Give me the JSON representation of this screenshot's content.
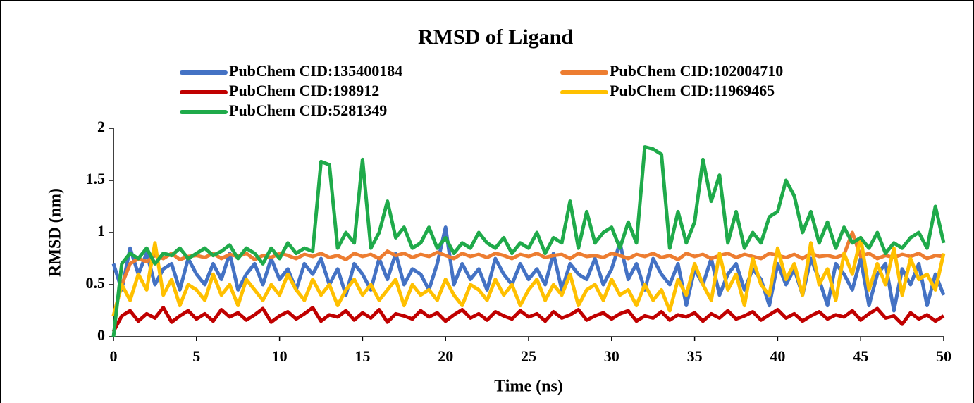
{
  "chart_data": {
    "type": "line",
    "title": "RMSD of Ligand",
    "x_label": "Time (ns)",
    "y_label": "RMSD (nm)",
    "xlim": [
      0,
      50
    ],
    "xticks": [
      0,
      5,
      10,
      15,
      20,
      25,
      30,
      35,
      40,
      45,
      50
    ],
    "ylim": [
      0,
      2
    ],
    "yticks": [
      0,
      0.5,
      1,
      1.5,
      2
    ],
    "x": [
      0,
      0.5,
      1,
      1.5,
      2,
      2.5,
      3,
      3.5,
      4,
      4.5,
      5,
      5.5,
      6,
      6.5,
      7,
      7.5,
      8,
      8.5,
      9,
      9.5,
      10,
      10.5,
      11,
      11.5,
      12,
      12.5,
      13,
      13.5,
      14,
      14.5,
      15,
      15.5,
      16,
      16.5,
      17,
      17.5,
      18,
      18.5,
      19,
      19.5,
      20,
      20.5,
      21,
      21.5,
      22,
      22.5,
      23,
      23.5,
      24,
      24.5,
      25,
      25.5,
      26,
      26.5,
      27,
      27.5,
      28,
      28.5,
      29,
      29.5,
      30,
      30.5,
      31,
      31.5,
      32,
      32.5,
      33,
      33.5,
      34,
      34.5,
      35,
      35.5,
      36,
      36.5,
      37,
      37.5,
      38,
      38.5,
      39,
      39.5,
      40,
      40.5,
      41,
      41.5,
      42,
      42.5,
      43,
      43.5,
      44,
      44.5,
      45,
      45.5,
      46,
      46.5,
      47,
      47.5,
      48,
      48.5,
      49,
      49.5,
      50
    ],
    "series": [
      {
        "name": "PubChem CID:135400184",
        "color": "#4472c4",
        "values": [
          0.7,
          0.45,
          0.85,
          0.6,
          0.8,
          0.5,
          0.65,
          0.7,
          0.45,
          0.75,
          0.6,
          0.5,
          0.7,
          0.55,
          0.8,
          0.45,
          0.6,
          0.7,
          0.5,
          0.75,
          0.55,
          0.65,
          0.45,
          0.7,
          0.6,
          0.75,
          0.5,
          0.65,
          0.4,
          0.7,
          0.6,
          0.45,
          0.75,
          0.55,
          0.8,
          0.5,
          0.65,
          0.6,
          0.45,
          0.7,
          1.05,
          0.5,
          0.7,
          0.55,
          0.65,
          0.45,
          0.75,
          0.6,
          0.5,
          0.7,
          0.55,
          0.65,
          0.5,
          0.8,
          0.45,
          0.7,
          0.6,
          0.55,
          0.75,
          0.5,
          0.65,
          0.9,
          0.55,
          0.7,
          0.45,
          0.75,
          0.6,
          0.5,
          0.7,
          0.3,
          0.65,
          0.5,
          0.75,
          0.4,
          0.6,
          0.7,
          0.45,
          0.65,
          0.55,
          0.3,
          0.7,
          0.5,
          0.65,
          0.4,
          0.75,
          0.55,
          0.3,
          0.7,
          0.6,
          0.45,
          0.75,
          0.3,
          0.6,
          0.7,
          0.25,
          0.65,
          0.5,
          0.7,
          0.3,
          0.6,
          0.4
        ]
      },
      {
        "name": "PubChem CID:102004710",
        "color": "#ed7d31",
        "values": [
          0.2,
          0.5,
          0.7,
          0.75,
          0.72,
          0.78,
          0.75,
          0.8,
          0.74,
          0.77,
          0.78,
          0.76,
          0.8,
          0.75,
          0.79,
          0.77,
          0.8,
          0.74,
          0.78,
          0.76,
          0.8,
          0.78,
          0.75,
          0.79,
          0.77,
          0.8,
          0.76,
          0.78,
          0.74,
          0.8,
          0.77,
          0.79,
          0.75,
          0.82,
          0.78,
          0.8,
          0.76,
          0.79,
          0.77,
          0.81,
          0.78,
          0.75,
          0.8,
          0.77,
          0.79,
          0.76,
          0.8,
          0.78,
          0.75,
          0.79,
          0.77,
          0.8,
          0.76,
          0.78,
          0.79,
          0.75,
          0.8,
          0.77,
          0.78,
          0.76,
          0.8,
          0.78,
          0.75,
          0.79,
          0.77,
          0.8,
          0.76,
          0.78,
          0.74,
          0.8,
          0.77,
          0.79,
          0.75,
          0.78,
          0.8,
          0.76,
          0.79,
          0.77,
          0.75,
          0.8,
          0.78,
          0.76,
          0.79,
          0.75,
          0.8,
          0.77,
          0.78,
          0.76,
          0.79,
          1.0,
          0.77,
          0.8,
          0.75,
          0.78,
          0.76,
          0.79,
          0.77,
          0.8,
          0.75,
          0.78,
          0.77
        ]
      },
      {
        "name": "PubChem CID:198912",
        "color": "#c00000",
        "values": [
          0.05,
          0.2,
          0.25,
          0.15,
          0.22,
          0.18,
          0.28,
          0.14,
          0.2,
          0.25,
          0.17,
          0.22,
          0.15,
          0.26,
          0.19,
          0.23,
          0.16,
          0.21,
          0.27,
          0.14,
          0.2,
          0.24,
          0.17,
          0.22,
          0.28,
          0.15,
          0.21,
          0.19,
          0.25,
          0.16,
          0.23,
          0.18,
          0.26,
          0.14,
          0.22,
          0.2,
          0.17,
          0.25,
          0.19,
          0.23,
          0.15,
          0.21,
          0.26,
          0.18,
          0.22,
          0.16,
          0.24,
          0.2,
          0.17,
          0.25,
          0.19,
          0.22,
          0.15,
          0.24,
          0.18,
          0.21,
          0.26,
          0.16,
          0.2,
          0.23,
          0.17,
          0.22,
          0.25,
          0.15,
          0.2,
          0.18,
          0.24,
          0.16,
          0.21,
          0.19,
          0.23,
          0.15,
          0.22,
          0.18,
          0.25,
          0.17,
          0.2,
          0.24,
          0.16,
          0.21,
          0.26,
          0.18,
          0.22,
          0.15,
          0.2,
          0.24,
          0.17,
          0.21,
          0.19,
          0.25,
          0.16,
          0.22,
          0.27,
          0.18,
          0.2,
          0.12,
          0.23,
          0.17,
          0.21,
          0.15,
          0.2
        ]
      },
      {
        "name": "PubChem CID:11969465",
        "color": "#ffc000",
        "values": [
          0.2,
          0.5,
          0.35,
          0.6,
          0.45,
          0.9,
          0.4,
          0.55,
          0.3,
          0.5,
          0.45,
          0.35,
          0.6,
          0.4,
          0.5,
          0.3,
          0.55,
          0.45,
          0.35,
          0.5,
          0.4,
          0.6,
          0.45,
          0.35,
          0.55,
          0.4,
          0.5,
          0.3,
          0.45,
          0.55,
          0.4,
          0.5,
          0.35,
          0.45,
          0.55,
          0.3,
          0.5,
          0.4,
          0.45,
          0.35,
          0.55,
          0.4,
          0.3,
          0.5,
          0.45,
          0.35,
          0.55,
          0.4,
          0.5,
          0.3,
          0.45,
          0.55,
          0.35,
          0.5,
          0.4,
          0.6,
          0.3,
          0.45,
          0.5,
          0.35,
          0.55,
          0.4,
          0.45,
          0.3,
          0.5,
          0.35,
          0.45,
          0.25,
          0.55,
          0.4,
          0.7,
          0.5,
          0.35,
          0.8,
          0.45,
          0.6,
          0.3,
          0.75,
          0.5,
          0.4,
          0.85,
          0.55,
          0.7,
          0.4,
          0.9,
          0.5,
          0.65,
          0.35,
          0.8,
          0.6,
          0.95,
          0.45,
          0.7,
          0.5,
          0.85,
          0.4,
          0.75,
          0.55,
          0.6,
          0.45,
          0.8
        ]
      },
      {
        "name": "PubChem CID:5281349",
        "color": "#1faa4a",
        "values": [
          0.0,
          0.7,
          0.8,
          0.75,
          0.85,
          0.7,
          0.8,
          0.78,
          0.85,
          0.75,
          0.8,
          0.85,
          0.78,
          0.82,
          0.88,
          0.75,
          0.85,
          0.8,
          0.7,
          0.85,
          0.75,
          0.9,
          0.8,
          0.85,
          0.82,
          1.68,
          1.65,
          0.85,
          1.0,
          0.9,
          1.7,
          0.85,
          1.0,
          1.3,
          0.95,
          1.05,
          0.85,
          0.9,
          1.05,
          0.85,
          0.95,
          0.8,
          0.9,
          0.85,
          1.0,
          0.9,
          0.85,
          0.95,
          0.8,
          0.9,
          0.85,
          1.0,
          0.8,
          0.95,
          0.9,
          1.3,
          0.85,
          1.2,
          0.9,
          1.0,
          1.05,
          0.85,
          1.1,
          0.9,
          1.82,
          1.8,
          1.75,
          0.85,
          1.2,
          0.9,
          1.1,
          1.7,
          1.3,
          1.55,
          0.9,
          1.2,
          0.85,
          1.0,
          0.9,
          1.15,
          1.2,
          1.5,
          1.35,
          1.0,
          1.2,
          0.9,
          1.1,
          0.85,
          1.05,
          0.9,
          0.95,
          0.85,
          1.0,
          0.8,
          0.9,
          0.85,
          0.95,
          1.0,
          0.85,
          1.25,
          0.9
        ]
      }
    ]
  }
}
